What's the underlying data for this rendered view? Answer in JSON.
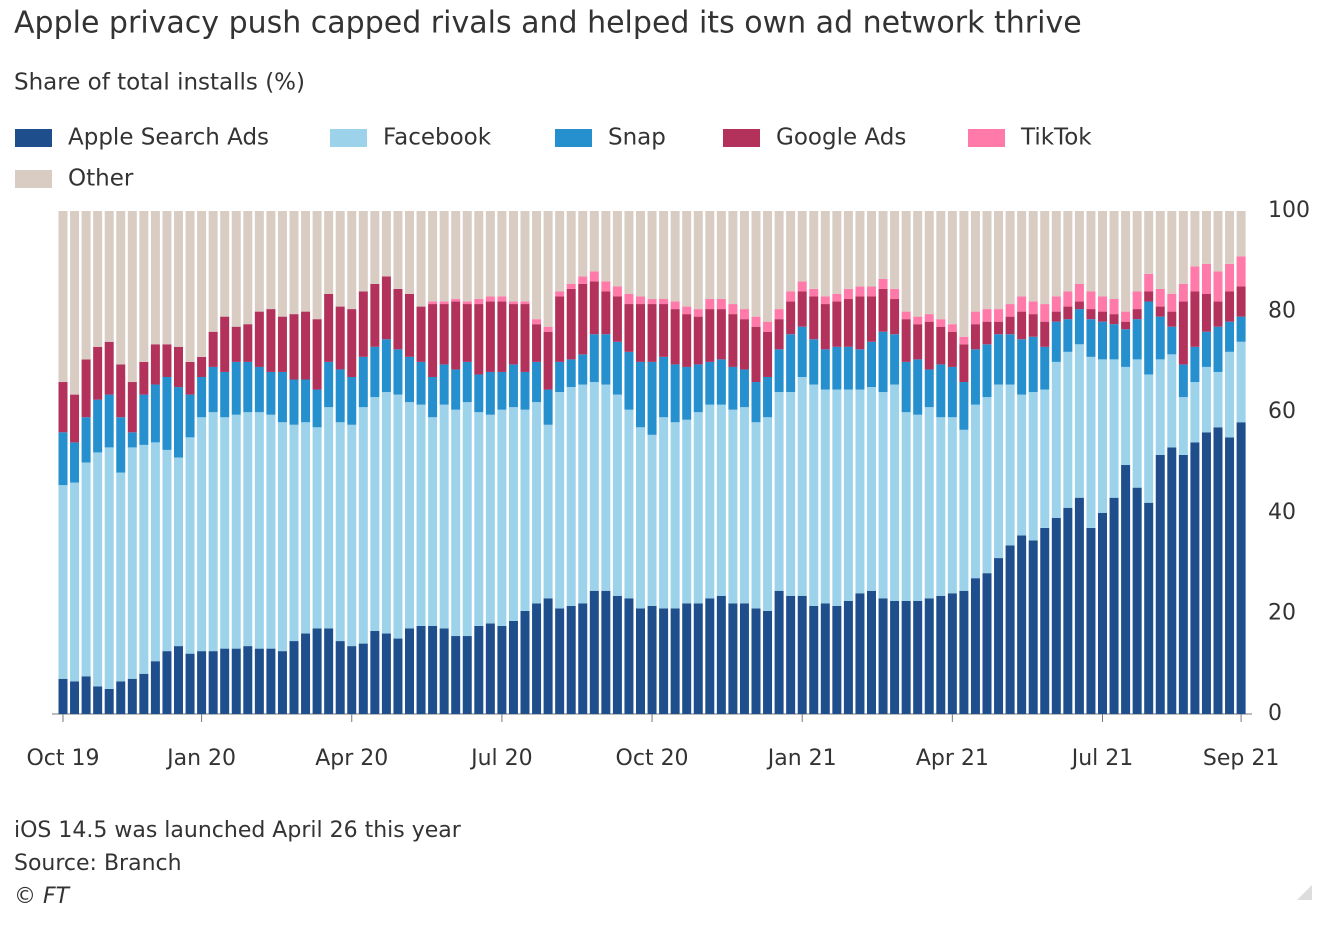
{
  "chart_data": {
    "type": "stacked_bar",
    "title": "Apple privacy push capped rivals and helped its own ad network thrive",
    "subtitle": "Share of total installs (%)",
    "notes": [
      "iOS 14.5 was launched April 26 this year",
      "Source: Branch",
      "© FT"
    ],
    "categories": [
      "Oct 19",
      null,
      null,
      null,
      null,
      null,
      null,
      null,
      null,
      null,
      null,
      null,
      "Jan 20",
      null,
      null,
      null,
      null,
      null,
      null,
      null,
      null,
      null,
      null,
      null,
      null,
      "Apr 20",
      null,
      null,
      null,
      null,
      null,
      null,
      null,
      null,
      null,
      null,
      null,
      null,
      "Jul 20",
      null,
      null,
      null,
      null,
      null,
      null,
      null,
      null,
      null,
      null,
      null,
      null,
      "Oct 20",
      null,
      null,
      null,
      null,
      null,
      null,
      null,
      null,
      null,
      null,
      null,
      null,
      "Jan 21",
      null,
      null,
      null,
      null,
      null,
      null,
      null,
      null,
      null,
      null,
      null,
      null,
      "Apr 21",
      null,
      null,
      null,
      null,
      null,
      null,
      null,
      null,
      null,
      null,
      null,
      null,
      "Jul 21",
      null,
      null,
      null,
      null,
      null,
      null,
      null,
      null,
      null,
      null,
      null,
      "Sep 21"
    ],
    "series": [
      {
        "name": "Apple Search Ads",
        "color": "#1f4e8c",
        "values": [
          7,
          6.5,
          7.5,
          5.5,
          5,
          6.5,
          7,
          8,
          10.5,
          12.5,
          13.5,
          12,
          12.5,
          12.5,
          13,
          13,
          13.5,
          13,
          13,
          12.5,
          14.5,
          16,
          17,
          17,
          14.5,
          13.5,
          14,
          16.5,
          16,
          15,
          17,
          17.5,
          17.5,
          17,
          15.5,
          15.5,
          17.5,
          18,
          17.5,
          18.5,
          20.5,
          22,
          23,
          21,
          21.5,
          22,
          24.5,
          24.5,
          23.5,
          23,
          21,
          21.5,
          21,
          21,
          22,
          22,
          23,
          23.5,
          22,
          22,
          21,
          20.5,
          24.5,
          23.5,
          23.5,
          21.5,
          22,
          21.5,
          22.5,
          24,
          24.5,
          23,
          22.5,
          22.5,
          22.5,
          23,
          23.5,
          24,
          24.5,
          27,
          28,
          31,
          33.5,
          35.5,
          34.5,
          37,
          39,
          41,
          43,
          37,
          40,
          43,
          49.5,
          45,
          42,
          51.5,
          53,
          51.5,
          54,
          56,
          57,
          55,
          58
        ]
      },
      {
        "name": "Facebook",
        "color": "#9dd3ea",
        "values": [
          38.5,
          39.5,
          42.5,
          46.5,
          48,
          41.5,
          46,
          45.5,
          43.5,
          40,
          37.5,
          43,
          46.5,
          47.5,
          46,
          46.5,
          46.5,
          47,
          46.5,
          45.5,
          43,
          42,
          40,
          44,
          43.5,
          44,
          47,
          46.5,
          48,
          48.5,
          45,
          44,
          41.5,
          44.5,
          45,
          46.5,
          42.5,
          41.5,
          43,
          42.5,
          40,
          40,
          34.5,
          43,
          43.5,
          43.5,
          41.5,
          41,
          40,
          37.5,
          36,
          34,
          38,
          37,
          36.5,
          38,
          38.5,
          38,
          38.5,
          39,
          37,
          38.5,
          39.5,
          40.5,
          43.5,
          44,
          42.5,
          43,
          42,
          40.5,
          40.5,
          41,
          43,
          37.5,
          37,
          38,
          35.5,
          35,
          32,
          34.5,
          35,
          34.5,
          32,
          28,
          29.5,
          27.5,
          31,
          31,
          30.5,
          34,
          30.5,
          27.5,
          19.5,
          25.5,
          25.5,
          19,
          18.5,
          11.5,
          12,
          13,
          11,
          17,
          16
        ]
      },
      {
        "name": "Snap",
        "color": "#2690cf",
        "values": [
          10.5,
          8,
          9,
          10.5,
          10.5,
          11,
          3,
          10,
          11.5,
          14.5,
          14,
          8.5,
          8,
          9,
          9,
          10.5,
          10,
          9,
          8.5,
          10,
          9,
          8.5,
          7.5,
          9,
          10.5,
          9.5,
          10,
          10,
          10.5,
          9,
          9,
          8.5,
          8,
          8,
          8,
          8,
          7.5,
          8.5,
          7.5,
          8.5,
          7.5,
          8,
          7,
          6,
          5.5,
          6,
          9.5,
          10,
          10.5,
          11.5,
          13,
          14.5,
          12,
          11.5,
          10.5,
          9.5,
          8.5,
          9,
          8.5,
          7.5,
          8,
          8,
          8.5,
          11.5,
          10,
          9,
          8,
          8.5,
          8.5,
          8,
          9,
          12,
          10,
          10,
          11,
          7.5,
          10.5,
          10,
          9.5,
          11,
          10.5,
          10,
          10,
          11,
          11,
          8.5,
          8,
          6.5,
          7,
          7.5,
          7.5,
          7,
          7.5,
          8,
          14.5,
          8.5,
          5.5,
          6.5,
          7,
          7,
          9,
          6,
          5
        ]
      },
      {
        "name": "Google Ads",
        "color": "#b2325c",
        "values": [
          10,
          9.5,
          11.5,
          10.5,
          10.5,
          10.5,
          10,
          6.5,
          8,
          6.5,
          8,
          6.5,
          4,
          7,
          11,
          7,
          7.5,
          11,
          12.5,
          11,
          13,
          13.5,
          14,
          13.5,
          12.5,
          13.5,
          13,
          12.5,
          12.5,
          12,
          12.5,
          11,
          14.5,
          12,
          13.5,
          11.5,
          14,
          14,
          14,
          12,
          13.5,
          7.5,
          11.5,
          13,
          14,
          14,
          10.5,
          8.5,
          9,
          9.5,
          11.5,
          11.5,
          10.5,
          11,
          10.5,
          9.5,
          10.5,
          10,
          10.5,
          10,
          11,
          9,
          6,
          6.5,
          7,
          8.5,
          9,
          9,
          9.5,
          10.5,
          9,
          8.5,
          7,
          8.5,
          7,
          9.5,
          7.5,
          7,
          7.5,
          5,
          4.5,
          2.5,
          3.5,
          5.5,
          4.5,
          5,
          2,
          2.5,
          1.5,
          2,
          2,
          2,
          1.5,
          2,
          2,
          2,
          3,
          12.5,
          11,
          7.5,
          5,
          6,
          6
        ]
      },
      {
        "name": "TikTok",
        "color": "#ff7aa8",
        "values": [
          0,
          0,
          0,
          0,
          0,
          0,
          0,
          0,
          0,
          0,
          0,
          0,
          0,
          0,
          0,
          0,
          0,
          0,
          0,
          0,
          0,
          0,
          0,
          0,
          0,
          0,
          0,
          0,
          0,
          0,
          0,
          0,
          0.5,
          0.5,
          0.5,
          0.5,
          1,
          1,
          1,
          0.5,
          0.5,
          1,
          1,
          1,
          1,
          1.5,
          2,
          2,
          2,
          2,
          1.5,
          1,
          1,
          1.5,
          1.5,
          1.5,
          2,
          2,
          2,
          2,
          2,
          2,
          2,
          2,
          2,
          1.5,
          1.5,
          1.5,
          2,
          2,
          2,
          2,
          2,
          1.5,
          1.5,
          1.5,
          1.5,
          1.5,
          1.5,
          2.5,
          2.5,
          2.5,
          2.5,
          3,
          2.5,
          3.5,
          3,
          3,
          3.5,
          3.5,
          3,
          3,
          2,
          3.5,
          3.5,
          3.5,
          3.5,
          3.5,
          5,
          6,
          6,
          5.5,
          6
        ]
      },
      {
        "name": "Other",
        "color": "#d9ccc3",
        "values": [
          34,
          36.5,
          29.5,
          27,
          26,
          30.5,
          34,
          30,
          26.5,
          26.5,
          27,
          30,
          29,
          24,
          21,
          23,
          22.5,
          20,
          19.5,
          21,
          20.5,
          20,
          21.5,
          16.5,
          19,
          19.5,
          16,
          14.5,
          13,
          15.5,
          16.5,
          19,
          18,
          18,
          17.5,
          18,
          17.5,
          17,
          17,
          18,
          18,
          21.5,
          23,
          16,
          14.5,
          13,
          12,
          14,
          15,
          16.5,
          17,
          17.5,
          17.5,
          18,
          19,
          19.5,
          17.5,
          17.5,
          18.5,
          19.5,
          21,
          22,
          19.5,
          16,
          14,
          15.5,
          17,
          16.5,
          15.5,
          15,
          15,
          13.5,
          15.5,
          20,
          21,
          20.5,
          21.5,
          22.5,
          25,
          20,
          19.5,
          19.5,
          18.5,
          17,
          18,
          18.5,
          17,
          16,
          14.5,
          16,
          17,
          17.5,
          20,
          16,
          12.5,
          15.5,
          16.5,
          14.5,
          11,
          10.5,
          12,
          10.5,
          9
        ]
      }
    ],
    "ylim": [
      0,
      100
    ],
    "yticks": [
      0,
      20,
      40,
      60,
      80,
      100
    ],
    "grid": false
  }
}
